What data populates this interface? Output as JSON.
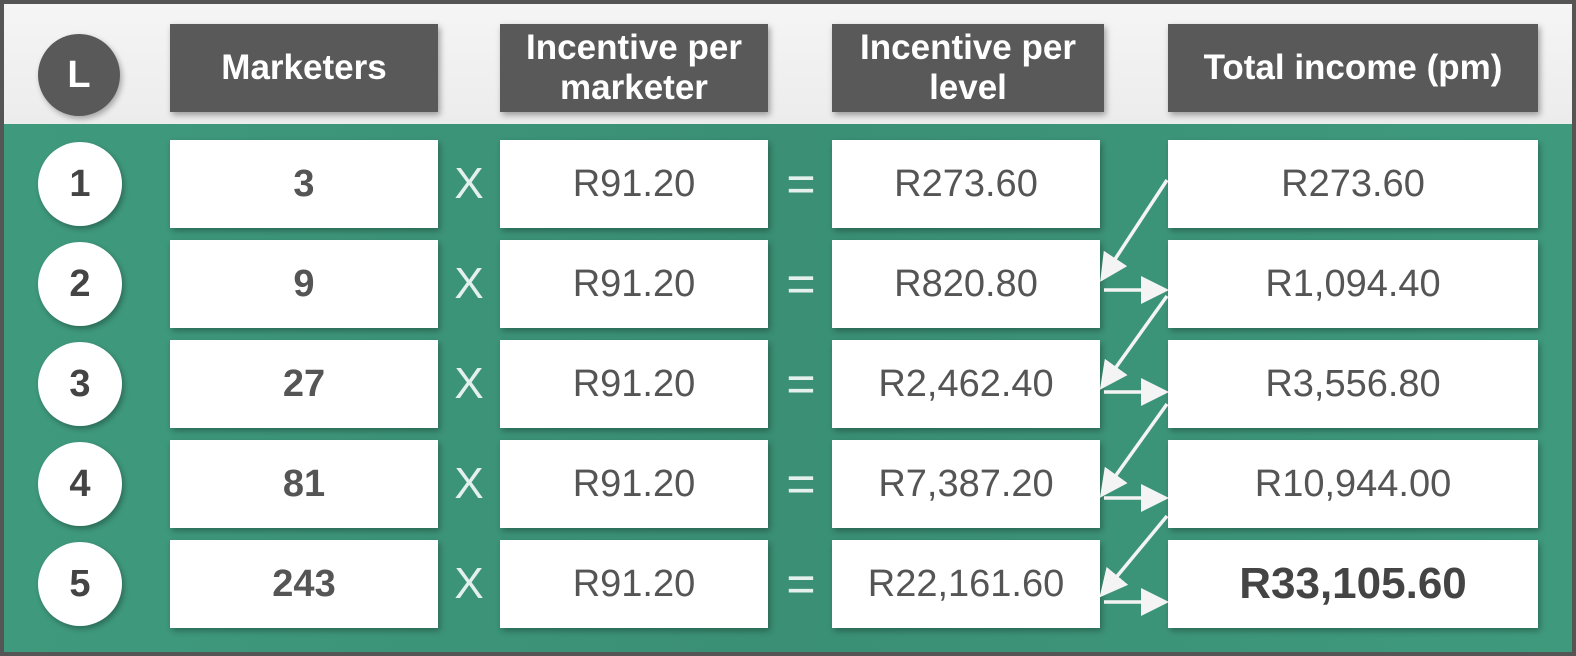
{
  "header": {
    "level_label": "L",
    "marketers": "Marketers",
    "incentive_per_marketer": "Incentive per marketer",
    "incentive_per_level": "Incentive per level",
    "total_income": "Total income (pm)"
  },
  "operators": {
    "multiply": "X",
    "equals": "="
  },
  "rows": [
    {
      "level": "1",
      "marketers": "3",
      "incentive_per_marketer": "R91.20",
      "incentive_per_level": "R273.60",
      "total_income": "R273.60"
    },
    {
      "level": "2",
      "marketers": "9",
      "incentive_per_marketer": "R91.20",
      "incentive_per_level": "R820.80",
      "total_income": "R1,094.40"
    },
    {
      "level": "3",
      "marketers": "27",
      "incentive_per_marketer": "R91.20",
      "incentive_per_level": "R2,462.40",
      "total_income": "R3,556.80"
    },
    {
      "level": "4",
      "marketers": "81",
      "incentive_per_marketer": "R91.20",
      "incentive_per_level": "R7,387.20",
      "total_income": "R10,944.00"
    },
    {
      "level": "5",
      "marketers": "243",
      "incentive_per_marketer": "R91.20",
      "incentive_per_level": "R22,161.60",
      "total_income": "R33,105.60"
    }
  ],
  "colors": {
    "header_box": "#595959",
    "body_green": "#3f9a7d",
    "arrow": "#ffffff"
  }
}
